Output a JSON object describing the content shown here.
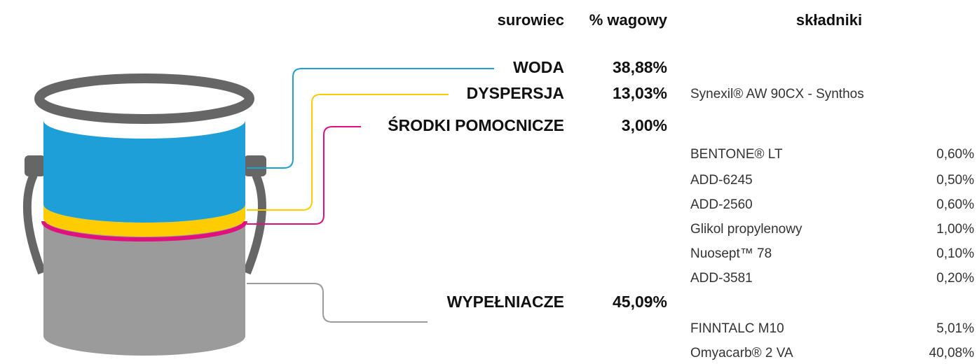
{
  "header": {
    "material": "surowiec",
    "weight": "% wagowy",
    "components": "składniki"
  },
  "rows": [
    {
      "name": "WODA",
      "weight": "38,88%"
    },
    {
      "name": "DYSPERSJA",
      "weight": "13,03%",
      "components": [
        {
          "name": "Synexil® AW 90CX - Synthos"
        }
      ]
    },
    {
      "name": "ŚRODKI POMOCNICZE",
      "weight": "3,00%",
      "components": [
        {
          "name": "BENTONE® LT",
          "weight": "0,60%"
        },
        {
          "name": "ADD-6245",
          "weight": "0,50%"
        },
        {
          "name": "ADD-2560",
          "weight": "0,60%"
        },
        {
          "name": "Glikol propylenowy",
          "weight": "1,00%"
        },
        {
          "name": "Nuosept™ 78",
          "weight": "0,10%"
        },
        {
          "name": "ADD-3581",
          "weight": "0,20%"
        }
      ]
    },
    {
      "name": "WYPEŁNIACZE",
      "weight": "45,09%",
      "components": [
        {
          "name": "FINNTALC M10",
          "weight": "5,01%"
        },
        {
          "name": "Omyacarb® 2 VA",
          "weight": "40,08%"
        }
      ]
    }
  ]
}
